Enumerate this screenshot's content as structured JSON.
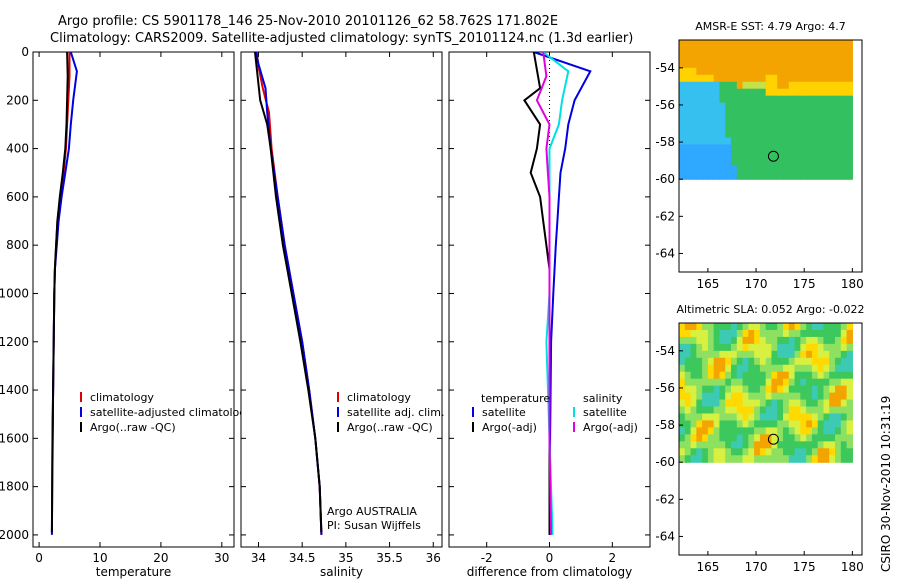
{
  "title_line1": "Argo profile: CS 5901178_146 25-Nov-2010 20101126_62 58.762S 171.802E",
  "title_line2": "Climatology: CARS2009. Satellite-adjusted climatology: synTS_20101124.nc (1.3d earlier)",
  "watermark": "CSIRO 30-Nov-2010 10:31:19",
  "colors": {
    "red": "#e00000",
    "blue": "#0000e0",
    "black": "#000000",
    "cyan": "#00e0e0",
    "magenta": "#e000e0"
  },
  "chart_data": [
    {
      "id": "temperature",
      "type": "line",
      "xlabel": "temperature",
      "xlim": [
        -1,
        32
      ],
      "ylim": [
        2050,
        0
      ],
      "xticks": [
        0,
        10,
        20,
        30
      ],
      "yticks": [
        0,
        200,
        400,
        600,
        800,
        1000,
        1200,
        1400,
        1600,
        1800,
        2000
      ],
      "legend": [
        "climatology",
        "satellite-adjusted climatology",
        "Argo(..raw -QC)"
      ],
      "series": [
        {
          "name": "climatology",
          "color": "red",
          "points": [
            [
              5.0,
              0
            ],
            [
              5.0,
              100
            ],
            [
              4.8,
              200
            ],
            [
              4.6,
              300
            ],
            [
              4.4,
              400
            ],
            [
              4.0,
              500
            ],
            [
              3.5,
              600
            ],
            [
              3.0,
              700
            ],
            [
              2.8,
              800
            ],
            [
              2.6,
              900
            ],
            [
              2.5,
              1000
            ],
            [
              2.4,
              1200
            ],
            [
              2.3,
              1400
            ],
            [
              2.25,
              1600
            ],
            [
              2.2,
              1700
            ]
          ]
        },
        {
          "name": "satellite-adjusted climatology",
          "color": "blue",
          "points": [
            [
              5.2,
              0
            ],
            [
              6.2,
              80
            ],
            [
              5.6,
              200
            ],
            [
              5.2,
              300
            ],
            [
              4.9,
              400
            ],
            [
              4.3,
              500
            ],
            [
              3.7,
              600
            ],
            [
              3.2,
              700
            ],
            [
              2.9,
              800
            ],
            [
              2.6,
              900
            ],
            [
              2.5,
              1000
            ],
            [
              2.4,
              1200
            ],
            [
              2.3,
              1400
            ],
            [
              2.2,
              1600
            ],
            [
              2.15,
              1800
            ],
            [
              2.1,
              2000
            ]
          ]
        },
        {
          "name": "Argo(..raw -QC)",
          "color": "black",
          "points": [
            [
              4.6,
              0
            ],
            [
              4.7,
              100
            ],
            [
              4.6,
              200
            ],
            [
              4.5,
              300
            ],
            [
              4.3,
              400
            ],
            [
              3.9,
              500
            ],
            [
              3.4,
              600
            ],
            [
              3.0,
              700
            ],
            [
              2.8,
              800
            ],
            [
              2.6,
              900
            ],
            [
              2.5,
              1000
            ],
            [
              2.4,
              1200
            ],
            [
              2.3,
              1400
            ],
            [
              2.2,
              1600
            ],
            [
              2.15,
              1800
            ],
            [
              2.1,
              1990
            ]
          ]
        }
      ]
    },
    {
      "id": "salinity",
      "type": "line",
      "xlabel": "salinity",
      "xlim": [
        33.8,
        36.1
      ],
      "ylim": [
        2050,
        0
      ],
      "xticks": [
        34,
        34.5,
        35,
        35.5,
        36
      ],
      "legend": [
        "climatology",
        "satellite adj. clim.",
        "Argo(..raw -QC)"
      ],
      "annotation": [
        "Argo AUSTRALIA",
        "PI: Susan Wijffels"
      ],
      "series": [
        {
          "name": "climatology",
          "color": "red",
          "points": [
            [
              33.98,
              0
            ],
            [
              34.0,
              60
            ],
            [
              34.05,
              150
            ],
            [
              34.12,
              250
            ],
            [
              34.15,
              400
            ],
            [
              34.22,
              600
            ],
            [
              34.3,
              800
            ],
            [
              34.4,
              1000
            ],
            [
              34.5,
              1200
            ],
            [
              34.58,
              1400
            ],
            [
              34.65,
              1600
            ],
            [
              34.7,
              1800
            ],
            [
              34.72,
              2000
            ]
          ]
        },
        {
          "name": "satellite adj. clim.",
          "color": "blue",
          "points": [
            [
              33.97,
              0
            ],
            [
              34.0,
              50
            ],
            [
              34.08,
              150
            ],
            [
              34.1,
              250
            ],
            [
              34.14,
              400
            ],
            [
              34.22,
              600
            ],
            [
              34.3,
              800
            ],
            [
              34.4,
              1000
            ],
            [
              34.5,
              1200
            ],
            [
              34.58,
              1400
            ],
            [
              34.65,
              1600
            ],
            [
              34.7,
              1800
            ],
            [
              34.72,
              2000
            ]
          ]
        },
        {
          "name": "Argo(..raw -QC)",
          "color": "black",
          "points": [
            [
              33.96,
              0
            ],
            [
              33.99,
              100
            ],
            [
              34.02,
              200
            ],
            [
              34.1,
              300
            ],
            [
              34.14,
              400
            ],
            [
              34.2,
              600
            ],
            [
              34.28,
              800
            ],
            [
              34.38,
              1000
            ],
            [
              34.48,
              1200
            ],
            [
              34.57,
              1400
            ],
            [
              34.65,
              1600
            ],
            [
              34.7,
              1800
            ],
            [
              34.72,
              1990
            ]
          ]
        }
      ]
    },
    {
      "id": "difference",
      "type": "line",
      "xlabel": "difference from climatology",
      "xlim": [
        -3.2,
        3.2
      ],
      "ylim": [
        2050,
        0
      ],
      "xticks": [
        -2,
        0,
        2
      ],
      "legend_left_title": "temperature",
      "legend_right_title": "salinity",
      "legend": [
        "satellite",
        "Argo(-adj)",
        "satellite",
        "Argo(-adj)"
      ],
      "series": [
        {
          "name": "temperature satellite",
          "color": "blue",
          "points": [
            [
              -0.5,
              0
            ],
            [
              1.3,
              80
            ],
            [
              0.8,
              200
            ],
            [
              0.6,
              300
            ],
            [
              0.5,
              400
            ],
            [
              0.35,
              500
            ],
            [
              0.3,
              600
            ],
            [
              0.25,
              700
            ],
            [
              0.2,
              800
            ],
            [
              0.12,
              1000
            ],
            [
              0.05,
              1200
            ],
            [
              0.02,
              1600
            ],
            [
              0.0,
              2000
            ]
          ]
        },
        {
          "name": "temperature Argo(-adj)",
          "color": "black",
          "points": [
            [
              -0.5,
              0
            ],
            [
              -0.3,
              150
            ],
            [
              -0.8,
              200
            ],
            [
              -0.3,
              300
            ],
            [
              -0.4,
              400
            ],
            [
              -0.6,
              500
            ],
            [
              -0.3,
              600
            ],
            [
              -0.2,
              700
            ],
            [
              -0.1,
              800
            ],
            [
              0.0,
              900
            ],
            [
              0.0,
              1000
            ],
            [
              0.0,
              1200
            ],
            [
              0.0,
              1600
            ],
            [
              0.0,
              2000
            ]
          ]
        },
        {
          "name": "salinity satellite",
          "color": "cyan",
          "points": [
            [
              -0.2,
              0
            ],
            [
              0.6,
              80
            ],
            [
              0.4,
              200
            ],
            [
              0.3,
              300
            ],
            [
              0.0,
              400
            ],
            [
              0.0,
              600
            ],
            [
              0.0,
              1000
            ],
            [
              -0.1,
              1200
            ],
            [
              0.0,
              1600
            ],
            [
              0.1,
              2000
            ]
          ]
        },
        {
          "name": "salinity Argo(-adj)",
          "color": "magenta",
          "points": [
            [
              -0.2,
              0
            ],
            [
              -0.1,
              100
            ],
            [
              -0.4,
              200
            ],
            [
              0.0,
              300
            ],
            [
              -0.1,
              400
            ],
            [
              -0.05,
              500
            ],
            [
              0.0,
              600
            ],
            [
              0.0,
              1000
            ],
            [
              0.0,
              1600
            ],
            [
              0.05,
              2000
            ]
          ]
        }
      ]
    }
  ],
  "maps": [
    {
      "id": "sst",
      "title": "AMSR-E SST: 4.79 Argo: 4.7",
      "lon_range": [
        162,
        181
      ],
      "lat_range": [
        -65,
        -52.5
      ],
      "data_lat_range": [
        -60,
        -52.5
      ],
      "xticks": [
        165,
        170,
        175,
        180
      ],
      "yticks": [
        -54,
        -56,
        -58,
        -60,
        -62,
        -64
      ],
      "float_lon": 171.802,
      "float_lat": -58.762
    },
    {
      "id": "sla",
      "title": "Altimetric SLA: 0.052 Argo: -0.022",
      "lon_range": [
        162,
        181
      ],
      "lat_range": [
        -65,
        -52.5
      ],
      "data_lat_range": [
        -60,
        -52.5
      ],
      "xticks": [
        165,
        170,
        175,
        180
      ],
      "yticks": [
        -54,
        -56,
        -58,
        -60,
        -62,
        -64
      ],
      "float_lon": 171.802,
      "float_lat": -58.762
    }
  ]
}
